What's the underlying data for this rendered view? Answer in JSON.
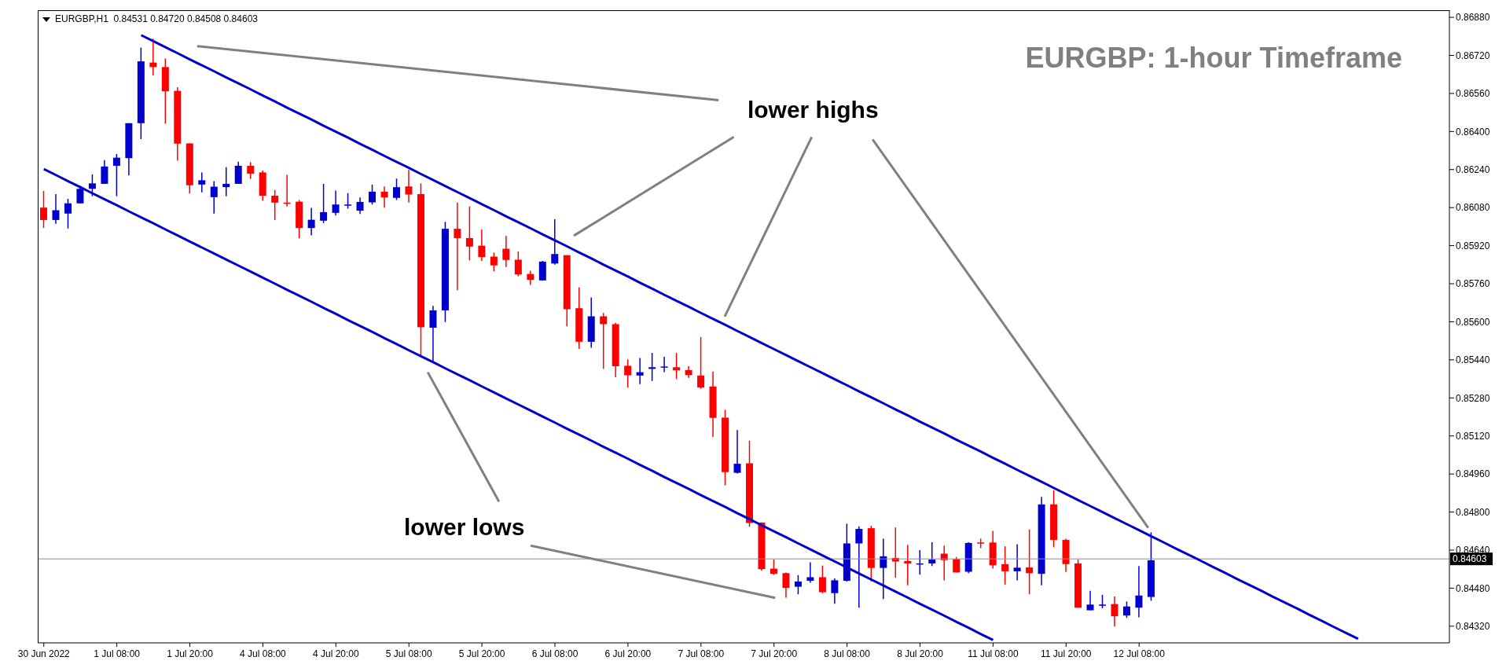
{
  "chart_data": {
    "type": "candlestick",
    "title": "EURGBP: 1-hour Timeframe",
    "subtitle": "EURGBP,H1  0.84531 0.84720 0.84508 0.84603",
    "annotations": [
      "lower highs",
      "lower lows"
    ],
    "categories": [
      "30 Jun 2022",
      null,
      null,
      null,
      null,
      null,
      "1 Jul 08:00",
      null,
      null,
      null,
      null,
      null,
      "1 Jul 20:00",
      null,
      null,
      null,
      null,
      null,
      "4 Jul 08:00",
      null,
      null,
      null,
      null,
      null,
      "4 Jul 20:00",
      null,
      null,
      null,
      null,
      null,
      "5 Jul 08:00",
      null,
      null,
      null,
      null,
      null,
      "5 Jul 20:00",
      null,
      null,
      null,
      null,
      null,
      "6 Jul 08:00",
      null,
      null,
      null,
      null,
      null,
      "6 Jul 20:00",
      null,
      null,
      null,
      null,
      null,
      "7 Jul 08:00",
      null,
      null,
      null,
      null,
      null,
      "7 Jul 20:00",
      null,
      null,
      null,
      null,
      null,
      "8 Jul 08:00",
      null,
      null,
      null,
      null,
      null,
      "8 Jul 20:00",
      null,
      null,
      null,
      null,
      null,
      "11 Jul 08:00",
      null,
      null,
      null,
      null,
      null,
      "11 Jul 20:00",
      null,
      null,
      null,
      null,
      null,
      "12 Jul 08:00",
      null,
      null,
      null,
      null,
      null,
      null,
      null,
      null,
      null,
      null,
      null,
      null,
      null,
      null,
      null,
      null,
      null,
      null,
      null,
      null,
      null,
      null,
      null,
      null,
      null
    ],
    "ohlc": [
      [
        0.8608,
        0.8615,
        0.85995,
        0.86028
      ],
      [
        0.86028,
        0.86137,
        0.86012,
        0.86069
      ],
      [
        0.86055,
        0.86117,
        0.85992,
        0.86098
      ],
      [
        0.86098,
        0.86172,
        0.86098,
        0.86159
      ],
      [
        0.86159,
        0.8622,
        0.86128,
        0.86182
      ],
      [
        0.8618,
        0.8628,
        0.8618,
        0.86253
      ],
      [
        0.86256,
        0.86305,
        0.86128,
        0.8629
      ],
      [
        0.86288,
        0.86435,
        0.86215,
        0.86435
      ],
      [
        0.86435,
        0.86753,
        0.86368,
        0.86695
      ],
      [
        0.8669,
        0.8679,
        0.86636,
        0.86671
      ],
      [
        0.86671,
        0.86707,
        0.86433,
        0.86569
      ],
      [
        0.86571,
        0.86586,
        0.86277,
        0.86349
      ],
      [
        0.8635,
        0.8635,
        0.86139,
        0.86174
      ],
      [
        0.86177,
        0.86228,
        0.86144,
        0.86195
      ],
      [
        0.86124,
        0.86191,
        0.86055,
        0.86168
      ],
      [
        0.86166,
        0.8625,
        0.86128,
        0.8618
      ],
      [
        0.8618,
        0.86273,
        0.8618,
        0.86256
      ],
      [
        0.86256,
        0.86271,
        0.86201,
        0.86223
      ],
      [
        0.86228,
        0.86236,
        0.86109,
        0.8613
      ],
      [
        0.8613,
        0.86154,
        0.86028,
        0.86101
      ],
      [
        0.86101,
        0.86218,
        0.86085,
        0.86101
      ],
      [
        0.86105,
        0.86112,
        0.85951,
        0.85994
      ],
      [
        0.85994,
        0.86079,
        0.85963,
        0.86029
      ],
      [
        0.86025,
        0.8618,
        0.86015,
        0.86061
      ],
      [
        0.86058,
        0.86152,
        0.86047,
        0.86093
      ],
      [
        0.86093,
        0.86141,
        0.86076,
        0.86093
      ],
      [
        0.86067,
        0.86123,
        0.86053,
        0.86104
      ],
      [
        0.86102,
        0.86177,
        0.86093,
        0.86147
      ],
      [
        0.86147,
        0.86169,
        0.8608,
        0.86123
      ],
      [
        0.86121,
        0.86202,
        0.86112,
        0.86166
      ],
      [
        0.86169,
        0.86238,
        0.86102,
        0.86135
      ],
      [
        0.86137,
        0.86182,
        0.85453,
        0.85577
      ],
      [
        0.85575,
        0.85667,
        0.85432,
        0.85648
      ],
      [
        0.85648,
        0.8602,
        0.85599,
        0.85991
      ],
      [
        0.85991,
        0.86101,
        0.85733,
        0.85952
      ],
      [
        0.85952,
        0.86085,
        0.85858,
        0.85916
      ],
      [
        0.8592,
        0.85988,
        0.85856,
        0.85872
      ],
      [
        0.85874,
        0.85891,
        0.85813,
        0.85837
      ],
      [
        0.85907,
        0.85961,
        0.8583,
        0.8586
      ],
      [
        0.85861,
        0.85896,
        0.85791,
        0.85799
      ],
      [
        0.85801,
        0.85815,
        0.85755,
        0.85776
      ],
      [
        0.85774,
        0.85856,
        0.85774,
        0.85853
      ],
      [
        0.85845,
        0.86031,
        0.8584,
        0.85885
      ],
      [
        0.8588,
        0.8588,
        0.85581,
        0.85653
      ],
      [
        0.85657,
        0.85745,
        0.85486,
        0.85516
      ],
      [
        0.85516,
        0.85702,
        0.85491,
        0.85623
      ],
      [
        0.85623,
        0.85637,
        0.85402,
        0.8559
      ],
      [
        0.8559,
        0.85596,
        0.85367,
        0.85413
      ],
      [
        0.85415,
        0.85442,
        0.85324,
        0.85375
      ],
      [
        0.85374,
        0.85448,
        0.85338,
        0.85388
      ],
      [
        0.85402,
        0.85469,
        0.85351,
        0.85409
      ],
      [
        0.85409,
        0.85453,
        0.85388,
        0.85412
      ],
      [
        0.85409,
        0.85469,
        0.85359,
        0.85396
      ],
      [
        0.85397,
        0.85413,
        0.85364,
        0.85376
      ],
      [
        0.85374,
        0.85536,
        0.85318,
        0.85324
      ],
      [
        0.85328,
        0.85391,
        0.85116,
        0.85196
      ],
      [
        0.85197,
        0.8523,
        0.84913,
        0.84968
      ],
      [
        0.84965,
        0.85145,
        0.84962,
        0.85003
      ],
      [
        0.85005,
        0.851,
        0.84738,
        0.84754
      ],
      [
        0.84756,
        0.84756,
        0.84553,
        0.8456
      ],
      [
        0.84562,
        0.846,
        0.84537,
        0.8454
      ],
      [
        0.84543,
        0.84546,
        0.8444,
        0.84481
      ],
      [
        0.84486,
        0.84535,
        0.84454,
        0.84508
      ],
      [
        0.84511,
        0.84589,
        0.84503,
        0.84526
      ],
      [
        0.84526,
        0.84575,
        0.84459,
        0.84463
      ],
      [
        0.84459,
        0.84521,
        0.84414,
        0.84513
      ],
      [
        0.84511,
        0.84751,
        0.84508,
        0.84668
      ],
      [
        0.84668,
        0.8474,
        0.84398,
        0.84729
      ],
      [
        0.84732,
        0.84742,
        0.84508,
        0.84565
      ],
      [
        0.84565,
        0.84688,
        0.84434,
        0.84614
      ],
      [
        0.84607,
        0.84735,
        0.84524,
        0.84592
      ],
      [
        0.84594,
        0.84662,
        0.84492,
        0.84584
      ],
      [
        0.84584,
        0.8464,
        0.84537,
        0.84584
      ],
      [
        0.84584,
        0.84673,
        0.84573,
        0.846
      ],
      [
        0.84625,
        0.84659,
        0.84513,
        0.84598
      ],
      [
        0.84602,
        0.84611,
        0.84546,
        0.84546
      ],
      [
        0.84549,
        0.84673,
        0.84543,
        0.8467
      ],
      [
        0.84672,
        0.84688,
        0.84648,
        0.84668
      ],
      [
        0.84672,
        0.84721,
        0.84562,
        0.84576
      ],
      [
        0.84581,
        0.84656,
        0.84495,
        0.84551
      ],
      [
        0.84551,
        0.84665,
        0.84513,
        0.84566
      ],
      [
        0.84567,
        0.84727,
        0.84454,
        0.84543
      ],
      [
        0.8454,
        0.84864,
        0.84492,
        0.84832
      ],
      [
        0.84832,
        0.84891,
        0.84652,
        0.84683
      ],
      [
        0.84683,
        0.84688,
        0.84548,
        0.84581
      ],
      [
        0.84584,
        0.846,
        0.84398,
        0.84398
      ],
      [
        0.84387,
        0.84469,
        0.84387,
        0.84411
      ],
      [
        0.84409,
        0.84452,
        0.84395,
        0.84411
      ],
      [
        0.84413,
        0.84445,
        0.84319,
        0.84362
      ],
      [
        0.84365,
        0.84424,
        0.84355,
        0.84403
      ],
      [
        0.84398,
        0.84573,
        0.84357,
        0.84449
      ],
      [
        0.84443,
        0.84715,
        0.84427,
        0.84597
      ],
      null,
      null,
      null,
      null,
      null,
      null,
      null,
      null,
      null,
      null,
      null,
      null,
      null,
      null,
      null,
      null,
      null,
      null,
      null,
      null,
      null,
      null,
      null,
      null
    ],
    "colors": [
      "#ff0000",
      "#0000cc",
      "#0000cc",
      "#0000cc",
      "#0000cc",
      "#0000cc",
      "#0000cc",
      "#0000cc",
      "#0000cc",
      "#ff0000",
      "#ff0000",
      "#ff0000",
      "#ff0000",
      "#0000cc",
      "#0000cc",
      "#0000cc",
      "#0000cc",
      "#ff0000",
      "#ff0000",
      "#ff0000",
      "#ff0000",
      "#ff0000",
      "#0000cc",
      "#0000cc",
      "#0000cc",
      "#0000cc",
      "#0000cc",
      "#0000cc",
      "#ff0000",
      "#0000cc",
      "#ff0000",
      "#ff0000",
      "#0000cc",
      "#0000cc",
      "#ff0000",
      "#ff0000",
      "#ff0000",
      "#ff0000",
      "#ff0000",
      "#ff0000",
      "#ff0000",
      "#0000cc",
      "#0000cc",
      "#ff0000",
      "#ff0000",
      "#0000cc",
      "#ff0000",
      "#ff0000",
      "#ff0000",
      "#0000cc",
      "#0000cc",
      "#0000cc",
      "#ff0000",
      "#ff0000",
      "#ff0000",
      "#ff0000",
      "#ff0000",
      "#0000cc",
      "#ff0000",
      "#ff0000",
      "#ff0000",
      "#ff0000",
      "#0000cc",
      "#0000cc",
      "#ff0000",
      "#0000cc",
      "#0000cc",
      "#0000cc",
      "#ff0000",
      "#0000cc",
      "#ff0000",
      "#ff0000",
      "#0000cc",
      "#0000cc",
      "#ff0000",
      "#ff0000",
      "#0000cc",
      "#ff0000",
      "#ff0000",
      "#ff0000",
      "#0000cc",
      "#ff0000",
      "#0000cc",
      "#ff0000",
      "#ff0000",
      "#ff0000",
      "#0000cc",
      "#0000cc",
      "#ff0000",
      "#0000cc",
      "#0000cc",
      "#0000cc",
      null,
      null,
      null,
      null,
      null,
      null,
      null,
      null,
      null,
      null,
      null,
      null,
      null,
      null,
      null,
      null,
      null,
      null,
      null,
      null,
      null,
      null,
      null,
      null
    ],
    "series": [
      {
        "type": "line",
        "color": "#0000cc",
        "values": [
          null,
          null,
          null,
          null,
          null,
          null,
          null,
          null,
          0.86805,
          0.8678,
          0.86754,
          0.86729,
          0.86703,
          0.86678,
          0.86653,
          0.86627,
          0.86602,
          0.86577,
          0.86551,
          0.86526,
          0.865,
          0.86475,
          0.8645,
          0.86424,
          0.86399,
          0.86374,
          0.86348,
          0.86323,
          0.86297,
          0.86272,
          0.86247,
          0.86221,
          0.86196,
          0.8617,
          0.86145,
          0.8612,
          0.86094,
          0.86069,
          0.86043,
          0.86018,
          0.85993,
          0.85967,
          0.85942,
          0.85917,
          0.85891,
          0.85866,
          0.8584,
          0.85815,
          0.8579,
          0.85764,
          0.85739,
          0.85713,
          0.85688,
          0.85663,
          0.85637,
          0.85612,
          0.85587,
          0.85561,
          0.85536,
          0.8551,
          0.85485,
          0.8546,
          0.85434,
          0.85409,
          0.85384,
          0.85358,
          0.85333,
          0.85307,
          0.85282,
          0.85257,
          0.85231,
          0.85206,
          0.8518,
          0.85155,
          0.8513,
          0.85104,
          0.85079,
          0.85054,
          0.85028,
          0.85003,
          0.84977,
          0.84952,
          0.84927,
          0.84901,
          0.84876,
          0.8485,
          0.84825,
          0.848,
          0.84774,
          0.84749,
          0.84724,
          0.84698,
          0.84673,
          0.84647,
          0.84622,
          0.84597,
          0.84571,
          0.84546,
          0.8452,
          0.84495,
          0.8447,
          0.84444,
          0.84419,
          0.84394,
          0.84368,
          0.84343,
          0.84317,
          0.84292,
          0.84267,
          null,
          null,
          null,
          null,
          null,
          null,
          null
        ]
      },
      {
        "type": "line",
        "color": "#0000cc",
        "values": [
          0.86242,
          0.86217,
          0.86191,
          0.86166,
          0.8614,
          0.86115,
          0.8609,
          0.86064,
          0.86039,
          0.86014,
          0.85988,
          0.85963,
          0.85937,
          0.85912,
          0.85887,
          0.85861,
          0.85836,
          0.85811,
          0.85785,
          0.8576,
          0.85734,
          0.85709,
          0.85684,
          0.85658,
          0.85633,
          0.85607,
          0.85582,
          0.85557,
          0.85531,
          0.85506,
          0.8548,
          0.85455,
          0.8543,
          0.85404,
          0.85379,
          0.85354,
          0.85328,
          0.85303,
          0.85277,
          0.85252,
          0.85227,
          0.85201,
          0.85176,
          0.8515,
          0.85125,
          0.851,
          0.85074,
          0.85049,
          0.85024,
          0.84998,
          0.84973,
          0.84947,
          0.84922,
          0.84897,
          0.84871,
          0.84846,
          0.84821,
          0.84795,
          0.8477,
          0.84744,
          0.84719,
          0.84694,
          0.84668,
          0.84643,
          0.84617,
          0.84592,
          0.84567,
          0.84541,
          0.84516,
          0.84491,
          0.84465,
          0.8444,
          0.84414,
          0.84389,
          0.84364,
          0.84338,
          0.84313,
          0.84287,
          0.84262,
          null,
          null,
          null,
          null,
          null,
          null,
          null,
          null,
          null,
          null,
          null,
          null,
          null,
          null,
          null,
          null,
          null,
          null,
          null,
          null,
          null,
          null,
          null,
          null,
          null,
          null,
          null,
          null,
          null,
          null,
          null,
          null,
          null,
          null,
          null,
          null,
          null
        ]
      }
    ],
    "ref_lines": [
      {
        "axis": "y",
        "value": 0.84603,
        "label": "0.84603",
        "color": "#8c8c9c"
      }
    ],
    "ylim": [
      0.8425,
      0.8691
    ],
    "yticks": [
      {
        "value": 0.8432,
        "label": "0.84320"
      },
      {
        "value": 0.8448,
        "label": "0.84480"
      },
      {
        "value": 0.8464,
        "label": "0.84640"
      },
      {
        "value": 0.848,
        "label": "0.84800"
      },
      {
        "value": 0.8496,
        "label": "0.84960"
      },
      {
        "value": 0.8512,
        "label": "0.85120"
      },
      {
        "value": 0.8528,
        "label": "0.85280"
      },
      {
        "value": 0.8544,
        "label": "0.85440"
      },
      {
        "value": 0.856,
        "label": "0.85600"
      },
      {
        "value": 0.8576,
        "label": "0.85760"
      },
      {
        "value": 0.8592,
        "label": "0.85920"
      },
      {
        "value": 0.8608,
        "label": "0.86080"
      },
      {
        "value": 0.8624,
        "label": "0.86240"
      },
      {
        "value": 0.864,
        "label": "0.86400"
      },
      {
        "value": 0.8656,
        "label": "0.86560"
      },
      {
        "value": 0.8672,
        "label": "0.86720"
      },
      {
        "value": 0.8688,
        "label": "0.86880"
      }
    ]
  }
}
